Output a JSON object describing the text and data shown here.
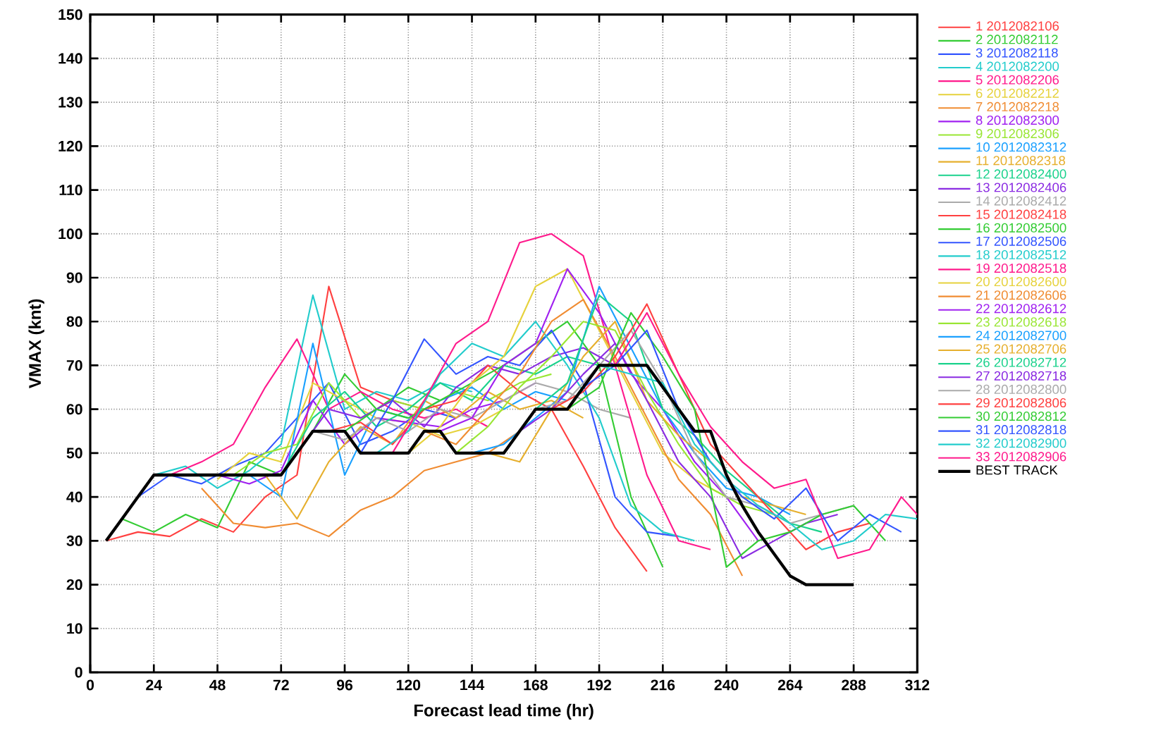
{
  "chart_data": {
    "type": "line",
    "xlabel": "Forecast lead time (hr)",
    "ylabel": "VMAX (knt)",
    "xlim": [
      0,
      312
    ],
    "xticks": [
      0,
      24,
      48,
      72,
      96,
      120,
      144,
      168,
      192,
      216,
      240,
      264,
      288,
      312
    ],
    "ylim": [
      0,
      150
    ],
    "yticks": [
      0,
      10,
      20,
      30,
      40,
      50,
      60,
      70,
      80,
      90,
      100,
      110,
      120,
      130,
      140,
      150
    ],
    "grid": true,
    "legend": "right",
    "line_style": "solid",
    "series": [
      {
        "name": "1 2012082106",
        "color": "#ff4040",
        "x": [
          6,
          18,
          30,
          42,
          54,
          66,
          78,
          90,
          102,
          114,
          126
        ],
        "values": [
          30,
          32,
          31,
          35,
          32,
          40,
          45,
          88,
          65,
          62,
          60
        ]
      },
      {
        "name": "2 2012082112",
        "color": "#33cc33",
        "x": [
          12,
          24,
          36,
          48,
          60,
          72,
          84,
          96,
          108,
          120,
          132
        ],
        "values": [
          35,
          32,
          36,
          33,
          48,
          45,
          55,
          68,
          60,
          65,
          62
        ]
      },
      {
        "name": "3 2012082118",
        "color": "#3355ff",
        "x": [
          18,
          30,
          42,
          54,
          66,
          78,
          90,
          102,
          114,
          126,
          138
        ],
        "values": [
          40,
          45,
          43,
          47,
          50,
          58,
          66,
          52,
          55,
          60,
          58
        ]
      },
      {
        "name": "4 2012082200",
        "color": "#22cccc",
        "x": [
          24,
          36,
          48,
          60,
          72,
          84,
          96,
          108,
          120,
          132,
          144
        ],
        "values": [
          45,
          47,
          42,
          46,
          52,
          86,
          60,
          64,
          62,
          66,
          64
        ]
      },
      {
        "name": "5 2012082206",
        "color": "#ff1a8c",
        "x": [
          30,
          42,
          54,
          66,
          78,
          90,
          102,
          114,
          126,
          138,
          150
        ],
        "values": [
          45,
          48,
          52,
          65,
          76,
          60,
          64,
          60,
          58,
          60,
          56
        ]
      },
      {
        "name": "6 2012082212",
        "color": "#e6d23c",
        "x": [
          48,
          60,
          72,
          84,
          96,
          108,
          120,
          132,
          144,
          156
        ],
        "values": [
          44,
          50,
          48,
          66,
          62,
          58,
          57,
          54,
          56,
          60
        ]
      },
      {
        "name": "7 2012082218",
        "color": "#f08c32",
        "x": [
          42,
          54,
          66,
          78,
          90,
          102,
          114,
          126,
          138,
          150,
          162
        ],
        "values": [
          42,
          34,
          33,
          34,
          31,
          37,
          40,
          46,
          48,
          50,
          55
        ]
      },
      {
        "name": "8 2012082300",
        "color": "#a020f0",
        "x": [
          48,
          60,
          72,
          84,
          96,
          108,
          120,
          132,
          144,
          156,
          168
        ],
        "values": [
          45,
          43,
          46,
          62,
          52,
          58,
          57,
          56,
          60,
          62,
          66
        ]
      },
      {
        "name": "9 2012082306",
        "color": "#99e633",
        "x": [
          54,
          66,
          78,
          90,
          102,
          114,
          126,
          138,
          150,
          162,
          174
        ],
        "values": [
          45,
          50,
          52,
          66,
          58,
          62,
          60,
          64,
          62,
          66,
          68
        ]
      },
      {
        "name": "10 2012082312",
        "color": "#1aa0ff",
        "x": [
          60,
          72,
          84,
          96,
          108,
          120,
          132,
          144,
          156,
          168,
          180
        ],
        "values": [
          45,
          40,
          75,
          45,
          60,
          58,
          62,
          65,
          60,
          64,
          62
        ]
      },
      {
        "name": "11 2012082318",
        "color": "#e6af2d",
        "x": [
          66,
          78,
          90,
          102,
          114,
          126,
          138,
          150,
          162,
          174,
          186
        ],
        "values": [
          45,
          35,
          48,
          56,
          52,
          62,
          58,
          64,
          60,
          62,
          58
        ]
      },
      {
        "name": "12 2012082400",
        "color": "#1ad28c",
        "x": [
          72,
          84,
          96,
          108,
          120,
          132,
          144,
          156,
          168,
          180,
          192
        ],
        "values": [
          45,
          58,
          64,
          56,
          60,
          66,
          62,
          70,
          68,
          72,
          70
        ]
      },
      {
        "name": "13 2012082406",
        "color": "#8a2be2",
        "x": [
          78,
          90,
          102,
          114,
          126,
          138,
          150,
          162,
          174,
          186,
          198
        ],
        "values": [
          50,
          60,
          58,
          62,
          56,
          65,
          70,
          68,
          72,
          74,
          70
        ]
      },
      {
        "name": "14 2012082412",
        "color": "#aaaaaa",
        "x": [
          84,
          96,
          108,
          120,
          132,
          144,
          156,
          168,
          180,
          192,
          204
        ],
        "values": [
          55,
          53,
          58,
          55,
          60,
          58,
          62,
          66,
          64,
          60,
          58
        ]
      },
      {
        "name": "15 2012082418",
        "color": "#ff4040",
        "x": [
          90,
          102,
          114,
          126,
          138,
          150,
          162,
          174,
          186,
          198,
          210
        ],
        "values": [
          55,
          57,
          52,
          60,
          62,
          70,
          64,
          60,
          47,
          33,
          23
        ]
      },
      {
        "name": "16 2012082500",
        "color": "#33cc33",
        "x": [
          96,
          108,
          120,
          132,
          144,
          156,
          168,
          180,
          192,
          204,
          216
        ],
        "values": [
          55,
          60,
          58,
          62,
          66,
          70,
          75,
          80,
          70,
          40,
          24
        ]
      },
      {
        "name": "17 2012082506",
        "color": "#3355ff",
        "x": [
          102,
          114,
          126,
          138,
          150,
          162,
          174,
          186,
          198,
          210,
          222
        ],
        "values": [
          50,
          62,
          76,
          68,
          72,
          70,
          78,
          66,
          40,
          32,
          31
        ]
      },
      {
        "name": "18 2012082512",
        "color": "#22cccc",
        "x": [
          108,
          120,
          132,
          144,
          156,
          168,
          180,
          192,
          204,
          216,
          228
        ],
        "values": [
          50,
          55,
          68,
          75,
          72,
          80,
          70,
          58,
          38,
          32,
          30
        ]
      },
      {
        "name": "19 2012082518",
        "color": "#ff1a8c",
        "x": [
          114,
          126,
          138,
          150,
          162,
          174,
          186,
          198,
          210,
          222,
          234
        ],
        "values": [
          50,
          62,
          75,
          80,
          98,
          100,
          95,
          70,
          45,
          30,
          28
        ]
      },
      {
        "name": "20 2012082600",
        "color": "#e6d23c",
        "x": [
          120,
          132,
          144,
          156,
          168,
          180,
          192,
          204,
          216,
          228,
          240
        ],
        "values": [
          50,
          56,
          66,
          72,
          88,
          92,
          78,
          64,
          50,
          44,
          40
        ]
      },
      {
        "name": "21 2012082606",
        "color": "#f08c32",
        "x": [
          126,
          138,
          150,
          162,
          174,
          186,
          198,
          210,
          222,
          234,
          246
        ],
        "values": [
          55,
          52,
          60,
          68,
          80,
          85,
          72,
          58,
          44,
          36,
          22
        ]
      },
      {
        "name": "22 2012082612",
        "color": "#a020f0",
        "x": [
          132,
          144,
          156,
          168,
          180,
          192,
          204,
          216,
          228,
          240,
          252
        ],
        "values": [
          55,
          58,
          70,
          75,
          92,
          82,
          68,
          60,
          48,
          40,
          30
        ]
      },
      {
        "name": "23 2012082618",
        "color": "#99e633",
        "x": [
          138,
          150,
          162,
          174,
          186,
          198,
          210,
          222,
          234,
          246,
          258
        ],
        "values": [
          50,
          56,
          65,
          72,
          80,
          78,
          64,
          52,
          42,
          38,
          36
        ]
      },
      {
        "name": "24 2012082700",
        "color": "#1aa0ff",
        "x": [
          144,
          156,
          168,
          180,
          192,
          204,
          216,
          228,
          240,
          252,
          264
        ],
        "values": [
          50,
          52,
          58,
          64,
          88,
          74,
          60,
          50,
          42,
          40,
          36
        ]
      },
      {
        "name": "25 2012082706",
        "color": "#e6af2d",
        "x": [
          150,
          162,
          174,
          186,
          198,
          210,
          222,
          234,
          246,
          258,
          270
        ],
        "values": [
          50,
          48,
          60,
          72,
          80,
          62,
          54,
          48,
          40,
          38,
          36
        ]
      },
      {
        "name": "26 2012082712",
        "color": "#1ad28c",
        "x": [
          156,
          168,
          180,
          192,
          204,
          216,
          228,
          240,
          252,
          264,
          276
        ],
        "values": [
          50,
          60,
          66,
          86,
          80,
          60,
          54,
          46,
          40,
          34,
          32
        ]
      },
      {
        "name": "27 2012082718",
        "color": "#8a2be2",
        "x": [
          162,
          174,
          186,
          198,
          210,
          222,
          234,
          246,
          258,
          270,
          282
        ],
        "values": [
          55,
          60,
          68,
          75,
          62,
          48,
          40,
          26,
          30,
          34,
          36
        ]
      },
      {
        "name": "28 2012082800",
        "color": "#aaaaaa",
        "x": [
          168,
          180,
          192,
          204,
          216,
          228,
          240,
          252,
          264,
          276,
          288
        ],
        "values": [
          60,
          62,
          70,
          78,
          66,
          50,
          40,
          38,
          34,
          36,
          38
        ]
      },
      {
        "name": "29 2012082806",
        "color": "#ff4040",
        "x": [
          174,
          186,
          198,
          210,
          222,
          234,
          246,
          258,
          270,
          282,
          294
        ],
        "values": [
          60,
          64,
          72,
          84,
          68,
          52,
          44,
          36,
          28,
          32,
          34
        ]
      },
      {
        "name": "30 2012082812",
        "color": "#33cc33",
        "x": [
          180,
          192,
          204,
          216,
          228,
          240,
          252,
          264,
          276,
          288,
          300
        ],
        "values": [
          60,
          65,
          82,
          72,
          60,
          24,
          30,
          32,
          36,
          38,
          30
        ]
      },
      {
        "name": "31 2012082818",
        "color": "#3355ff",
        "x": [
          186,
          198,
          210,
          222,
          234,
          246,
          258,
          270,
          282,
          294,
          306
        ],
        "values": [
          65,
          70,
          78,
          60,
          48,
          40,
          35,
          42,
          30,
          36,
          32
        ]
      },
      {
        "name": "32 2012082900",
        "color": "#22cccc",
        "x": [
          192,
          204,
          216,
          228,
          240,
          252,
          264,
          276,
          288,
          300,
          312
        ],
        "values": [
          70,
          68,
          66,
          52,
          44,
          38,
          34,
          28,
          30,
          36,
          35
        ]
      },
      {
        "name": "33 2012082906",
        "color": "#ff1a8c",
        "x": [
          198,
          210,
          222,
          234,
          246,
          258,
          270,
          282,
          294,
          306,
          312
        ],
        "values": [
          70,
          82,
          68,
          56,
          48,
          42,
          44,
          26,
          28,
          40,
          36
        ]
      },
      {
        "name": "BEST TRACK",
        "color": "#000000",
        "x": [
          6,
          12,
          18,
          24,
          30,
          36,
          42,
          48,
          54,
          60,
          66,
          72,
          78,
          84,
          90,
          96,
          102,
          108,
          114,
          120,
          126,
          132,
          138,
          144,
          150,
          156,
          162,
          168,
          174,
          180,
          186,
          192,
          198,
          204,
          210,
          216,
          222,
          228,
          234,
          240,
          246,
          252,
          258,
          264,
          270,
          276,
          282,
          288
        ],
        "values": [
          30,
          35,
          40,
          45,
          45,
          45,
          45,
          45,
          45,
          45,
          45,
          45,
          50,
          55,
          55,
          55,
          50,
          50,
          50,
          50,
          55,
          55,
          50,
          50,
          50,
          50,
          55,
          60,
          60,
          60,
          65,
          70,
          70,
          70,
          70,
          65,
          60,
          55,
          55,
          45,
          38,
          32,
          27,
          22,
          20,
          20,
          20,
          20
        ]
      }
    ]
  }
}
